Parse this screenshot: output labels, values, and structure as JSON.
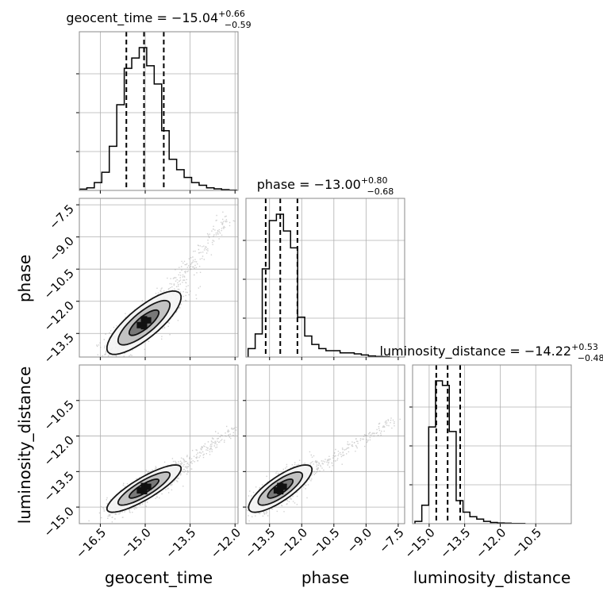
{
  "chart_data": {
    "type": "corner",
    "parameters": [
      "geocent_time",
      "phase",
      "luminosity_distance"
    ],
    "axis_labels": {
      "geocent_time": "geocent_time",
      "phase": "phase",
      "luminosity_distance": "luminosity_distance"
    },
    "titles": [
      {
        "name": "geocent_time",
        "label": "geocent_time",
        "median": "−15.04",
        "plus": "+0.66",
        "minus": "−0.59"
      },
      {
        "name": "phase",
        "label": "phase",
        "median": "−13.00",
        "plus": "+0.80",
        "minus": "−0.68"
      },
      {
        "name": "luminosity_distance",
        "label": "luminosity_distance",
        "median": "−14.22",
        "plus": "+0.53",
        "minus": "−0.48"
      }
    ],
    "ranges": {
      "geocent_time": [
        -17.2,
        -11.9
      ],
      "phase": [
        -14.6,
        -7.2
      ],
      "luminosity_distance": [
        -15.7,
        -9.0
      ]
    },
    "bottom_ticks": {
      "geocent_time": [
        "−16.5",
        "−15.0",
        "−13.5",
        "−12.0"
      ],
      "phase": [
        "−13.5",
        "−12.0",
        "−10.5",
        "−9.0",
        "−7.5"
      ],
      "luminosity_distance": [
        "−15.0",
        "−13.5",
        "−12.0",
        "−10.5"
      ]
    },
    "left_ticks": {
      "phase": [
        "−7.5",
        "−9.0",
        "−10.5",
        "−12.0",
        "−13.5"
      ],
      "luminosity_distance": [
        "−10.5",
        "−12.0",
        "−13.5",
        "−15.0"
      ]
    },
    "quantile_lines": {
      "geocent_time": [
        -15.63,
        -15.04,
        -14.38
      ],
      "phase": [
        -13.68,
        -13.0,
        -12.2
      ],
      "luminosity_distance": [
        -14.7,
        -14.22,
        -13.69
      ]
    },
    "histograms": {
      "geocent_time": {
        "start": -17.2,
        "width": 0.25,
        "counts": [
          0.5,
          1,
          3,
          7,
          17,
          33,
          47,
          51,
          55,
          48,
          41,
          23,
          12,
          8,
          5,
          3,
          2,
          1,
          0.6,
          0.3,
          0.1
        ]
      },
      "phase": {
        "start": -14.5,
        "width": 0.33,
        "counts": [
          4,
          11,
          42,
          65,
          68,
          60,
          52,
          19,
          10,
          6,
          4,
          3,
          3,
          2,
          2,
          1.5,
          1,
          0.5,
          0.3,
          0.2
        ]
      },
      "luminosity_distance": {
        "start": -15.6,
        "width": 0.29,
        "counts": [
          1,
          8,
          42,
          62,
          60,
          40,
          10,
          5,
          3,
          2,
          1,
          0.5,
          0.3,
          0.2,
          0.1,
          0.1
        ]
      }
    },
    "scatter_correlations": [
      {
        "x": "geocent_time",
        "y": "phase",
        "center": [
          -15.04,
          -13.0
        ],
        "sd": [
          0.62,
          0.74
        ],
        "rho": 0.8,
        "tail_to": [
          -12.2,
          -8.0
        ]
      },
      {
        "x": "geocent_time",
        "y": "luminosity_distance",
        "center": [
          -15.04,
          -14.22
        ],
        "sd": [
          0.62,
          0.5
        ],
        "rho": 0.85,
        "tail_to": [
          -12.0,
          -11.7
        ]
      },
      {
        "x": "phase",
        "y": "luminosity_distance",
        "center": [
          -13.0,
          -14.22
        ],
        "sd": [
          0.74,
          0.5
        ],
        "rho": 0.8,
        "tail_to": [
          -7.7,
          -11.3
        ]
      }
    ],
    "grid": true
  }
}
